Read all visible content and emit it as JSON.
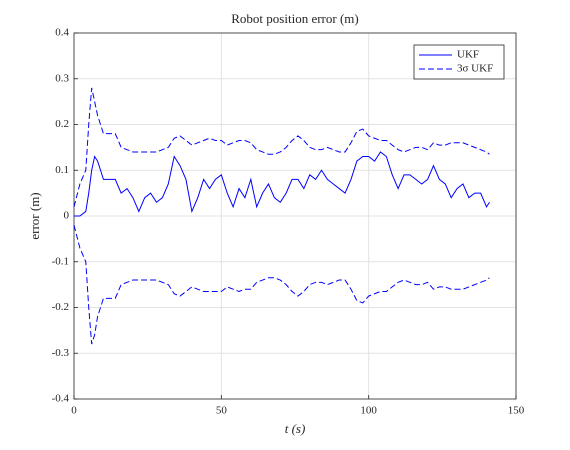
{
  "chart_data": {
    "type": "line",
    "title": "Robot position error (m)",
    "xlabel": "t (s)",
    "ylabel": "error (m)",
    "x": [
      0,
      2,
      4,
      5,
      6,
      7,
      8,
      10,
      12,
      14,
      16,
      18,
      20,
      22,
      24,
      26,
      28,
      30,
      32,
      34,
      36,
      38,
      40,
      42,
      44,
      46,
      48,
      50,
      52,
      54,
      56,
      58,
      60,
      62,
      64,
      66,
      68,
      70,
      72,
      74,
      76,
      78,
      80,
      82,
      84,
      86,
      88,
      90,
      92,
      94,
      96,
      98,
      100,
      102,
      104,
      106,
      108,
      110,
      112,
      114,
      116,
      118,
      120,
      122,
      124,
      126,
      128,
      130,
      132,
      134,
      136,
      138,
      140,
      141
    ],
    "series": [
      {
        "name": "UKF",
        "color": "#0000ff",
        "dash": false,
        "values": [
          0,
          0,
          0.01,
          0.05,
          0.1,
          0.13,
          0.12,
          0.08,
          0.08,
          0.08,
          0.05,
          0.06,
          0.04,
          0.01,
          0.04,
          0.05,
          0.03,
          0.04,
          0.07,
          0.13,
          0.11,
          0.08,
          0.01,
          0.04,
          0.08,
          0.06,
          0.08,
          0.09,
          0.05,
          0.02,
          0.06,
          0.04,
          0.08,
          0.02,
          0.05,
          0.07,
          0.04,
          0.03,
          0.05,
          0.08,
          0.08,
          0.06,
          0.09,
          0.08,
          0.1,
          0.08,
          0.07,
          0.06,
          0.05,
          0.08,
          0.12,
          0.13,
          0.13,
          0.12,
          0.14,
          0.13,
          0.09,
          0.06,
          0.09,
          0.09,
          0.08,
          0.07,
          0.08,
          0.11,
          0.08,
          0.07,
          0.04,
          0.06,
          0.07,
          0.04,
          0.05,
          0.05,
          0.02,
          0.03
        ]
      },
      {
        "name": "3σ UKF",
        "color": "#0000ff",
        "dash": true,
        "values": [
          0.02,
          0.07,
          0.1,
          0.2,
          0.28,
          0.25,
          0.22,
          0.18,
          0.18,
          0.18,
          0.15,
          0.145,
          0.14,
          0.14,
          0.14,
          0.14,
          0.14,
          0.145,
          0.15,
          0.17,
          0.175,
          0.165,
          0.155,
          0.16,
          0.165,
          0.17,
          0.165,
          0.165,
          0.155,
          0.16,
          0.165,
          0.165,
          0.16,
          0.145,
          0.14,
          0.135,
          0.135,
          0.14,
          0.15,
          0.165,
          0.175,
          0.165,
          0.15,
          0.145,
          0.145,
          0.15,
          0.145,
          0.14,
          0.14,
          0.16,
          0.185,
          0.19,
          0.175,
          0.17,
          0.165,
          0.165,
          0.155,
          0.145,
          0.14,
          0.145,
          0.15,
          0.15,
          0.145,
          0.16,
          0.155,
          0.155,
          0.16,
          0.16,
          0.16,
          0.155,
          0.15,
          0.145,
          0.14,
          0.135
        ]
      },
      {
        "color": "#0000ff",
        "dash": true,
        "values": [
          -0.02,
          -0.07,
          -0.1,
          -0.2,
          -0.28,
          -0.26,
          -0.22,
          -0.18,
          -0.18,
          -0.18,
          -0.15,
          -0.145,
          -0.14,
          -0.14,
          -0.14,
          -0.14,
          -0.14,
          -0.145,
          -0.15,
          -0.17,
          -0.175,
          -0.165,
          -0.155,
          -0.16,
          -0.165,
          -0.165,
          -0.165,
          -0.165,
          -0.155,
          -0.16,
          -0.165,
          -0.16,
          -0.16,
          -0.145,
          -0.14,
          -0.135,
          -0.135,
          -0.14,
          -0.15,
          -0.165,
          -0.175,
          -0.165,
          -0.15,
          -0.145,
          -0.145,
          -0.15,
          -0.145,
          -0.14,
          -0.14,
          -0.16,
          -0.185,
          -0.19,
          -0.175,
          -0.17,
          -0.165,
          -0.165,
          -0.155,
          -0.145,
          -0.14,
          -0.145,
          -0.15,
          -0.15,
          -0.145,
          -0.16,
          -0.155,
          -0.155,
          -0.16,
          -0.16,
          -0.16,
          -0.155,
          -0.15,
          -0.145,
          -0.14,
          -0.135
        ]
      }
    ],
    "xlim": [
      0,
      150
    ],
    "ylim": [
      -0.4,
      0.4
    ],
    "xticks": [
      0,
      50,
      100,
      150
    ],
    "yticks": [
      -0.4,
      -0.3,
      -0.2,
      -0.1,
      0,
      0.1,
      0.2,
      0.3,
      0.4
    ],
    "grid": true,
    "legend": "upper right"
  }
}
